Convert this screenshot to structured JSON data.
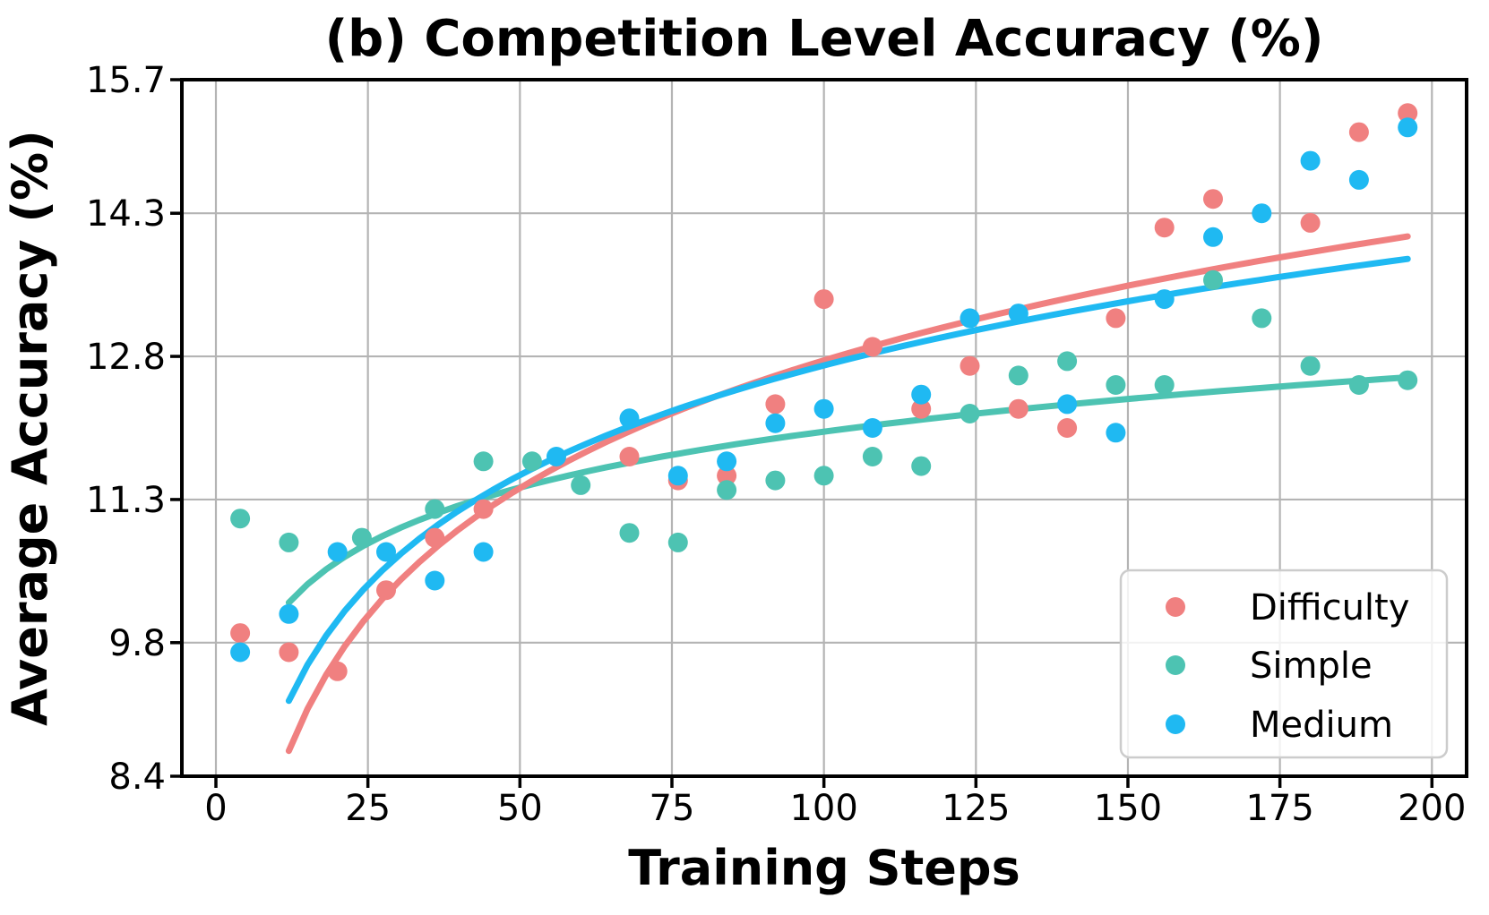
{
  "figure": {
    "title": "(b) Competition Level Accuracy (%)",
    "xlabel": "Training Steps",
    "ylabel": "Average Accuracy (%)"
  },
  "legend": {
    "items": [
      {
        "label": "Difficulty",
        "color": "#f08080"
      },
      {
        "label": "Simple",
        "color": "#4dc3b2"
      },
      {
        "label": "Medium",
        "color": "#1fb9f2"
      }
    ]
  },
  "chart_data": {
    "type": "scatter",
    "title": "(b) Competition Level Accuracy (%)",
    "xlabel": "Training Steps",
    "ylabel": "Average Accuracy (%)",
    "xlim": [
      -5.6,
      205.7
    ],
    "ylim": [
      8.4,
      15.7
    ],
    "x_ticks": [
      0,
      25,
      50,
      75,
      100,
      125,
      150,
      175,
      200
    ],
    "y_ticks": [
      8.4,
      9.8,
      11.3,
      12.8,
      14.3,
      15.7
    ],
    "y_tick_labels": [
      "8.4",
      "9.8",
      "11.3",
      "12.8",
      "14.3",
      "15.7"
    ],
    "grid": true,
    "grid_color": "#b4b4b4",
    "legend_position": "lower right",
    "series": [
      {
        "name": "Difficulty",
        "color": "#f08080",
        "points": [
          [
            4,
            9.9
          ],
          [
            12,
            9.7
          ],
          [
            20,
            9.5
          ],
          [
            28,
            10.35
          ],
          [
            36,
            10.9
          ],
          [
            44,
            11.2
          ],
          [
            68,
            11.75
          ],
          [
            76,
            11.5
          ],
          [
            84,
            11.55
          ],
          [
            92,
            12.3
          ],
          [
            100,
            13.4
          ],
          [
            108,
            12.9
          ],
          [
            116,
            12.25
          ],
          [
            124,
            12.7
          ],
          [
            132,
            12.25
          ],
          [
            140,
            12.05
          ],
          [
            148,
            13.2
          ],
          [
            156,
            14.15
          ],
          [
            164,
            14.45
          ],
          [
            180,
            14.2
          ],
          [
            188,
            15.15
          ],
          [
            196,
            15.35
          ]
        ],
        "trend": {
          "type": "log",
          "formula": "y = 3.87 + 1.93*ln(x)",
          "a": 3.87,
          "b": 1.93,
          "x_start": 12,
          "x_end": 196
        }
      },
      {
        "name": "Simple",
        "color": "#4dc3b2",
        "points": [
          [
            4,
            11.1
          ],
          [
            12,
            10.85
          ],
          [
            24,
            10.9
          ],
          [
            36,
            11.2
          ],
          [
            44,
            11.7
          ],
          [
            52,
            11.7
          ],
          [
            60,
            11.45
          ],
          [
            68,
            10.95
          ],
          [
            76,
            10.85
          ],
          [
            84,
            11.4
          ],
          [
            92,
            11.5
          ],
          [
            100,
            11.55
          ],
          [
            108,
            11.75
          ],
          [
            116,
            11.65
          ],
          [
            124,
            12.2
          ],
          [
            132,
            12.6
          ],
          [
            140,
            12.75
          ],
          [
            148,
            12.5
          ],
          [
            156,
            12.5
          ],
          [
            164,
            13.6
          ],
          [
            172,
            13.2
          ],
          [
            180,
            12.7
          ],
          [
            188,
            12.5
          ],
          [
            196,
            12.55
          ]
        ],
        "trend": {
          "type": "log",
          "formula": "y = 8.12 + 0.845*ln(x)",
          "a": 8.12,
          "b": 0.845,
          "x_start": 12,
          "x_end": 196
        }
      },
      {
        "name": "Medium",
        "color": "#1fb9f2",
        "points": [
          [
            4,
            9.7
          ],
          [
            12,
            10.1
          ],
          [
            20,
            10.75
          ],
          [
            28,
            10.75
          ],
          [
            36,
            10.45
          ],
          [
            44,
            10.75
          ],
          [
            56,
            11.75
          ],
          [
            68,
            12.15
          ],
          [
            76,
            11.55
          ],
          [
            84,
            11.7
          ],
          [
            92,
            12.1
          ],
          [
            100,
            12.25
          ],
          [
            108,
            12.05
          ],
          [
            116,
            12.4
          ],
          [
            124,
            13.2
          ],
          [
            132,
            13.25
          ],
          [
            140,
            12.3
          ],
          [
            148,
            12.0
          ],
          [
            156,
            13.4
          ],
          [
            164,
            14.05
          ],
          [
            172,
            14.3
          ],
          [
            180,
            14.85
          ],
          [
            188,
            14.65
          ],
          [
            196,
            15.2
          ]
        ],
        "trend": {
          "type": "log",
          "formula": "y = 5.07 + 1.658*ln(x)",
          "a": 5.07,
          "b": 1.658,
          "x_start": 12,
          "x_end": 196
        }
      }
    ]
  },
  "style": {
    "background": "#ffffff",
    "spine_color": "#000000",
    "grid_color": "#b4b4b4",
    "text_color": "#000000",
    "legend_border": "#cccccc"
  }
}
